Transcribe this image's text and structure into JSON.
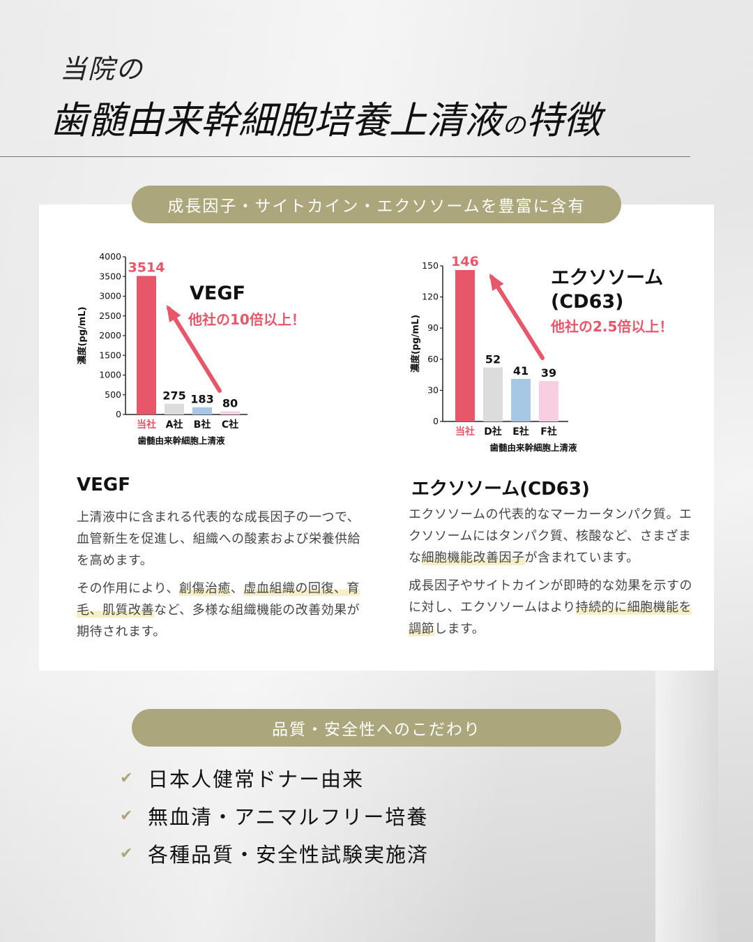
{
  "header": {
    "sub": "当院の",
    "title_main": "歯髄由来幹細胞培養上清液",
    "title_no": "の",
    "title_end": "特徴"
  },
  "section1": {
    "pill": "成長因子・サイトカイン・エクソソームを豊富に含有"
  },
  "chart_data": [
    {
      "type": "bar",
      "ylabel": "濃度(pg/mL)",
      "xlabel": "歯髄由来幹細胞上清液",
      "categories": [
        "当社",
        "A社",
        "B社",
        "C社"
      ],
      "values": [
        3514,
        275,
        183,
        80
      ],
      "value_labels": [
        "3514",
        "275",
        "183",
        "80"
      ],
      "ylim": [
        0,
        4000
      ],
      "yticks": [
        0,
        500,
        1000,
        1500,
        2000,
        2500,
        3000,
        3500,
        4000
      ],
      "colors": [
        "#e8566a",
        "#dcdcdc",
        "#a7c7e7",
        "#f7cfe0"
      ],
      "annotation_title": "VEGF",
      "annotation_sub": "他社の10倍以上！"
    },
    {
      "type": "bar",
      "ylabel": "濃度(pg/mL)",
      "xlabel": "歯髄由来幹細胞上清液",
      "categories": [
        "当社",
        "D社",
        "E社",
        "F社"
      ],
      "values": [
        146,
        52,
        41,
        39
      ],
      "value_labels": [
        "146",
        "52",
        "41",
        "39"
      ],
      "ylim": [
        0,
        150
      ],
      "yticks": [
        0,
        30,
        60,
        90,
        120,
        150
      ],
      "colors": [
        "#e8566a",
        "#dcdcdc",
        "#a7c7e7",
        "#f7cfe0"
      ],
      "annotation_title_lines": [
        "エクソソーム",
        "(CD63)"
      ],
      "annotation_sub": "他社の2.5倍以上！"
    }
  ],
  "vegf": {
    "heading": "VEGF",
    "p1": "上清液中に含まれる代表的な成長因子の一つで、血管新生を促進し、組織への酸素および栄養供給を高めます。",
    "p2_a": "その作用により、",
    "p2_hl1": "創傷治癒",
    "p2_b": "、",
    "p2_hl2": "虚血組織の回復",
    "p2_c": "、",
    "p2_hl3": "育毛",
    "p2_d": "、",
    "p2_hl4": "肌質改善",
    "p2_e": "など、多様な組織機能の改善効果が期待されます。"
  },
  "exo": {
    "heading": "エクソソーム(CD63)",
    "p1_a": "エクソソームの代表的なマーカータンパク質。エクソソームにはタンパク質、核酸など、さまざまな",
    "p1_hl": "細胞機能改善因子",
    "p1_b": "が含まれています。",
    "p2_a": "成長因子やサイトカインが即時的な効果を示すのに対し、エクソソームはより",
    "p2_hl1": "持続的に",
    "p2_hl2": "細胞機能を調節",
    "p2_b": "します。"
  },
  "section2": {
    "pill": "品質・安全性へのこだわり",
    "check_icon": "check-icon",
    "items": [
      "日本人健常ドナー由来",
      "無血清・アニマルフリー培養",
      "各種品質・安全性試験実施済"
    ]
  },
  "colors": {
    "accent": "#aba67c",
    "highlight_bar": "#e8566a",
    "marker": "#f6efc5"
  }
}
